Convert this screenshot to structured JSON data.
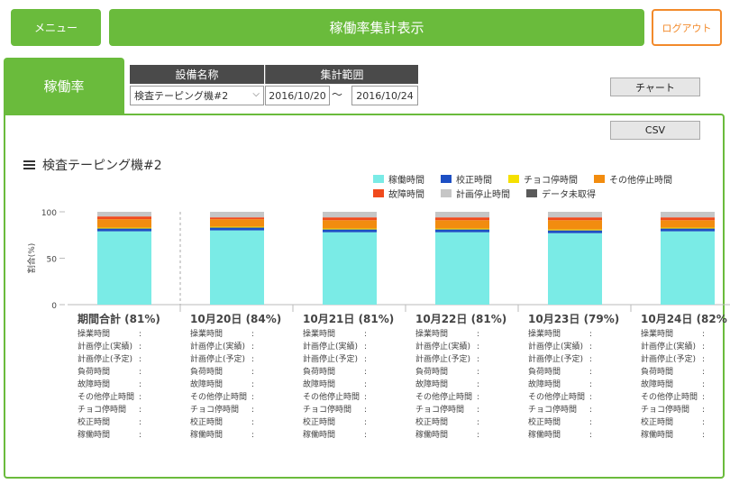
{
  "header": {
    "menu_label": "メニュー",
    "title": "稼働率集計表示",
    "logout_label": "ログアウト"
  },
  "tab": {
    "label": "稼働率"
  },
  "filters": {
    "equipment_header": "設備名称",
    "range_header": "集計範囲",
    "equipment_value": "検査テーピング機#2",
    "date_from": "2016/10/20",
    "date_separator": "〜",
    "date_to": "2016/10/24"
  },
  "buttons": {
    "chart_label": "チャート",
    "csv_label": "CSV"
  },
  "chart_title": "検査テーピング機#2",
  "legend": [
    {
      "name": "稼働時間",
      "color": "#7aebe6"
    },
    {
      "name": "校正時間",
      "color": "#1d4fc4"
    },
    {
      "name": "チョコ停時間",
      "color": "#f5e000"
    },
    {
      "name": "その他停止時間",
      "color": "#f28c0f"
    },
    {
      "name": "故障時間",
      "color": "#f04a1d"
    },
    {
      "name": "計画停止時間",
      "color": "#c6c6c6"
    },
    {
      "name": "データ未取得",
      "color": "#5a5a5a"
    }
  ],
  "chart_data": {
    "type": "bar",
    "stacked": true,
    "ylabel": "割合(%)",
    "ylim": [
      0,
      100
    ],
    "yticks": [
      0,
      50,
      100
    ],
    "grid": false,
    "categories": [
      "期間合計",
      "10月20日",
      "10月21日",
      "10月22日",
      "10月23日",
      "10月24日"
    ],
    "category_labels": [
      "期間合計 (81%)",
      "10月20日 (84%)",
      "10月21日 (81%)",
      "10月22日 (81%)",
      "10月23日 (79%)",
      "10月24日 (82%"
    ],
    "series": [
      {
        "name": "稼働時間",
        "color": "#7aebe6",
        "values": [
          79,
          80,
          78,
          78,
          77,
          79
        ]
      },
      {
        "name": "校正時間",
        "color": "#1d4fc4",
        "values": [
          3,
          3,
          3,
          3,
          3,
          3
        ]
      },
      {
        "name": "チョコ停時間",
        "color": "#f5e000",
        "values": [
          1,
          1,
          1,
          1,
          1,
          1
        ]
      },
      {
        "name": "その他停止時間",
        "color": "#f28c0f",
        "values": [
          9,
          8,
          9,
          9,
          10,
          8
        ]
      },
      {
        "name": "故障時間",
        "color": "#f04a1d",
        "values": [
          3,
          2,
          3,
          3,
          3,
          3
        ]
      },
      {
        "name": "計画停止時間",
        "color": "#c6c6c6",
        "values": [
          5,
          6,
          6,
          6,
          6,
          6
        ]
      },
      {
        "name": "データ未取得",
        "color": "#5a5a5a",
        "values": [
          0,
          0,
          0,
          0,
          0,
          0
        ]
      }
    ]
  },
  "detail_rows": [
    "操業時間",
    "計画停止(実績)",
    "計画停止(予定)",
    "負荷時間",
    "故障時間",
    "その他停止時間",
    "チョコ停時間",
    "校正時間",
    "稼働時間"
  ],
  "detail_separator": ":"
}
